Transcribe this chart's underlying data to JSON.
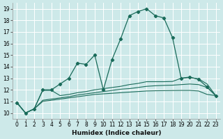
{
  "xlabel": "Humidex (Indice chaleur)",
  "background_color": "#cde9e9",
  "grid_color": "#b8d8d8",
  "line_color": "#1a6b5a",
  "xlim": [
    -0.5,
    23.5
  ],
  "ylim": [
    9.5,
    19.5
  ],
  "xticks": [
    0,
    1,
    2,
    3,
    4,
    5,
    6,
    7,
    8,
    9,
    10,
    11,
    12,
    13,
    14,
    15,
    16,
    17,
    18,
    19,
    20,
    21,
    22,
    23
  ],
  "yticks": [
    10,
    11,
    12,
    13,
    14,
    15,
    16,
    17,
    18,
    19
  ],
  "series": [
    {
      "x": [
        0,
        1,
        2,
        3,
        4,
        5,
        6,
        7,
        8,
        9,
        10,
        11,
        12,
        13,
        14,
        15,
        16,
        17,
        18,
        19,
        20,
        21,
        22,
        23
      ],
      "y": [
        10.9,
        10.0,
        10.35,
        11.0,
        11.1,
        11.2,
        11.3,
        11.4,
        11.5,
        11.6,
        11.65,
        11.7,
        11.75,
        11.8,
        11.85,
        11.9,
        11.92,
        11.93,
        11.94,
        11.95,
        11.95,
        11.9,
        11.6,
        11.5
      ],
      "marker": false
    },
    {
      "x": [
        0,
        1,
        2,
        3,
        4,
        5,
        6,
        7,
        8,
        9,
        10,
        11,
        12,
        13,
        14,
        15,
        16,
        17,
        18,
        19,
        20,
        21,
        22,
        23
      ],
      "y": [
        10.9,
        10.0,
        10.35,
        11.1,
        11.2,
        11.3,
        11.4,
        11.55,
        11.65,
        11.75,
        11.85,
        11.95,
        12.05,
        12.1,
        12.2,
        12.3,
        12.35,
        12.38,
        12.4,
        12.45,
        12.5,
        12.45,
        12.2,
        11.5
      ],
      "marker": false
    },
    {
      "x": [
        0,
        1,
        2,
        3,
        4,
        5,
        6,
        7,
        8,
        9,
        10,
        11,
        12,
        13,
        14,
        15,
        16,
        17,
        18,
        19,
        20,
        21,
        22,
        23
      ],
      "y": [
        10.9,
        10.0,
        10.35,
        11.95,
        11.95,
        11.5,
        11.6,
        11.75,
        11.85,
        12.0,
        12.1,
        12.2,
        12.3,
        12.45,
        12.55,
        12.7,
        12.7,
        12.7,
        12.72,
        13.0,
        13.05,
        12.95,
        12.5,
        11.5
      ],
      "marker": false
    },
    {
      "x": [
        0,
        1,
        2,
        3,
        4,
        5,
        6,
        7,
        8,
        9,
        10,
        11,
        12,
        13,
        14,
        15,
        16,
        17,
        18,
        19,
        20,
        21,
        22,
        23
      ],
      "y": [
        10.9,
        10.0,
        10.35,
        12.0,
        12.0,
        12.5,
        13.0,
        14.3,
        14.2,
        15.0,
        12.0,
        14.6,
        16.4,
        18.4,
        18.75,
        19.0,
        18.4,
        18.2,
        16.5,
        13.0,
        13.1,
        12.9,
        12.25,
        11.5
      ],
      "marker": true
    }
  ]
}
